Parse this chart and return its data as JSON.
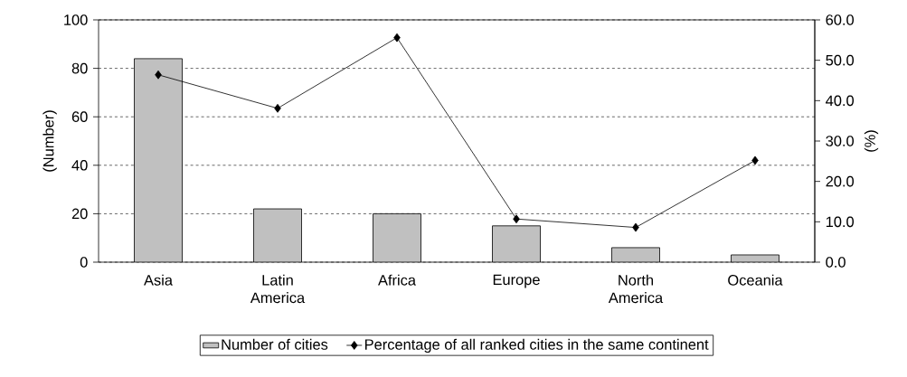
{
  "chart_data": {
    "type": "bar",
    "categories": [
      "Asia",
      "Latin America",
      "Africa",
      "Europe",
      "North America",
      "Oceania"
    ],
    "series": [
      {
        "name": "Number of cities",
        "color": "#c0c0c0",
        "values": [
          84,
          22,
          20,
          15,
          6,
          3
        ]
      },
      {
        "name": "Percentage of all ranked cities in the same continent",
        "type": "line",
        "axis": "y2",
        "color": "#000000",
        "values": [
          46.4,
          38.1,
          55.6,
          10.7,
          8.6,
          25.2
        ]
      }
    ],
    "ylabel": "(Number)",
    "y2label": "(%)",
    "ylim": [
      0,
      100
    ],
    "yticks": [
      0,
      20,
      40,
      60,
      80,
      100
    ],
    "y2lim": [
      0,
      60
    ],
    "y2ticks": [
      {
        "value": 0,
        "label": "0.0"
      },
      {
        "value": 10,
        "label": "10.0"
      },
      {
        "value": 20,
        "label": "20.0"
      },
      {
        "value": 30,
        "label": "30.0"
      },
      {
        "value": 40,
        "label": "40.0"
      },
      {
        "value": 50,
        "label": "50.0"
      },
      {
        "value": 60,
        "label": "60.0"
      }
    ],
    "grid": "y",
    "legend": "bottom",
    "marker": "diamond",
    "line_style": "solid"
  }
}
